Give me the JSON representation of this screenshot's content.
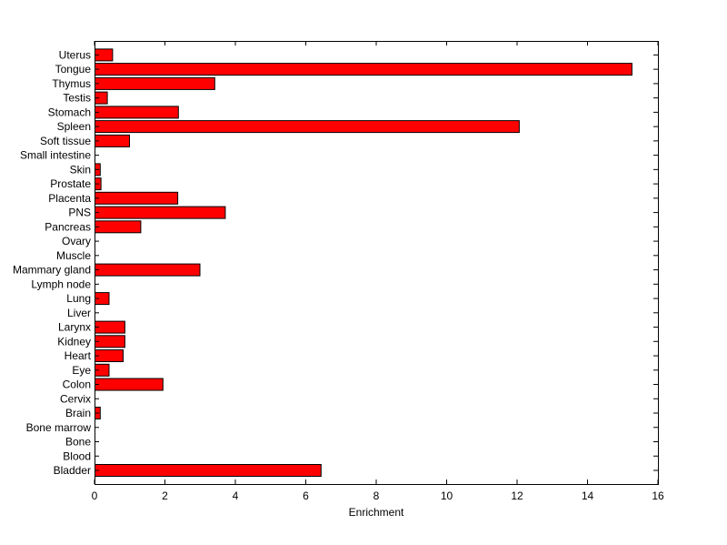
{
  "chart_data": {
    "type": "bar",
    "orientation": "horizontal",
    "title": "",
    "xlabel": "Enrichment",
    "ylabel": "",
    "xlim": [
      0,
      16
    ],
    "xticks": [
      0,
      2,
      4,
      6,
      8,
      10,
      12,
      14,
      16
    ],
    "grid": false,
    "legend": "none",
    "bar_color": "#ff0000",
    "bar_edge_color": "#000000",
    "categories": [
      "Bladder",
      "Blood",
      "Bone",
      "Bone marrow",
      "Brain",
      "Cervix",
      "Colon",
      "Eye",
      "Heart",
      "Kidney",
      "Larynx",
      "Liver",
      "Lung",
      "Lymph node",
      "Mammary gland",
      "Muscle",
      "Ovary",
      "Pancreas",
      "PNS",
      "Placenta",
      "Prostate",
      "Skin",
      "Small intestine",
      "Soft tissue",
      "Spleen",
      "Stomach",
      "Testis",
      "Thymus",
      "Tongue",
      "Uterus"
    ],
    "values": [
      6.42,
      0,
      0,
      0,
      0.15,
      0,
      1.93,
      0.4,
      0.8,
      0.85,
      0.85,
      0,
      0.4,
      0,
      2.98,
      0,
      0,
      1.3,
      3.7,
      2.35,
      0.17,
      0.15,
      0,
      0.98,
      12.05,
      2.37,
      0.35,
      3.4,
      15.25,
      0.5
    ]
  }
}
